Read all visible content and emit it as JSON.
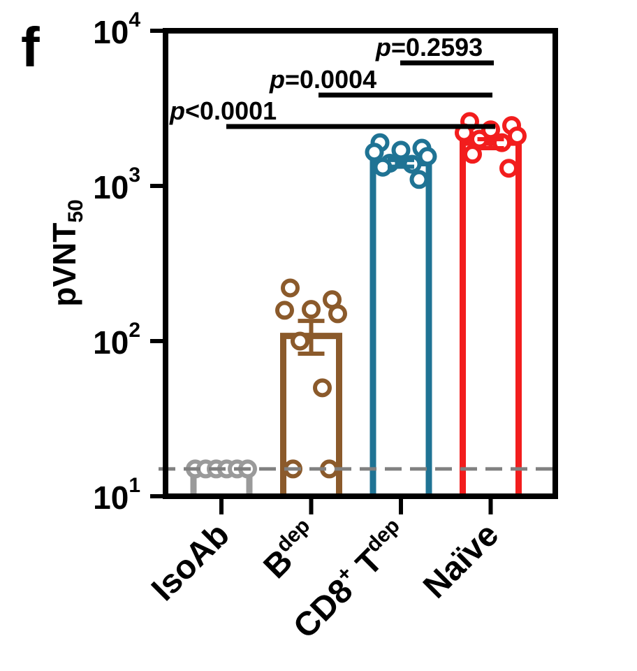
{
  "chart_data": {
    "panel_label": "f",
    "type": "bar",
    "y_scale": "log10",
    "ylim": [
      10,
      10000
    ],
    "ylabel": {
      "main": "pVNT",
      "sub": "50"
    },
    "y_ticks": [
      {
        "base": "10",
        "exp": "1",
        "value": 10
      },
      {
        "base": "10",
        "exp": "2",
        "value": 100
      },
      {
        "base": "10",
        "exp": "3",
        "value": 1000
      },
      {
        "base": "10",
        "exp": "4",
        "value": 10000
      }
    ],
    "detection_limit": 15,
    "grid": false,
    "legend": "none",
    "groups": [
      {
        "label_main": "IsoAb",
        "label_sup": "",
        "color": "#9a9a9a",
        "mean": 15,
        "sem_upper": 15,
        "sem_lower": 15,
        "points": [
          15,
          15,
          15,
          15,
          15,
          15
        ]
      },
      {
        "label_main": "B",
        "label_sup": "dep",
        "color": "#8b5a2b",
        "mean": 108,
        "sem_upper": 135,
        "sem_lower": 83,
        "points": [
          220,
          185,
          160,
          158,
          150,
          100,
          50,
          15,
          15
        ]
      },
      {
        "label_main": "CD8",
        "label_sup2": "+",
        "label_main2": " T",
        "label_sup": "dep",
        "color": "#1f7394",
        "mean": 1400,
        "sem_upper": 1470,
        "sem_lower": 1330,
        "points": [
          1900,
          1750,
          1700,
          1650,
          1550,
          1400,
          1380,
          1320,
          1100
        ]
      },
      {
        "label_main": "Naïve",
        "label_sup": "",
        "color": "#f21d1d",
        "mean": 1900,
        "sem_upper": 2000,
        "sem_lower": 1750,
        "points": [
          2600,
          2450,
          2300,
          2200,
          2100,
          2000,
          1900,
          1600,
          1300
        ]
      }
    ],
    "comparisons": [
      {
        "label_p": "p",
        "label_rest": "=0.2593",
        "from_group": 2,
        "to_group": 3
      },
      {
        "label_p": "p",
        "label_rest": "=0.0004",
        "from_group": 1,
        "to_group": 3
      },
      {
        "label_p": "p",
        "label_rest": "<0.0001",
        "from_group": 0,
        "to_group": 3
      }
    ]
  }
}
